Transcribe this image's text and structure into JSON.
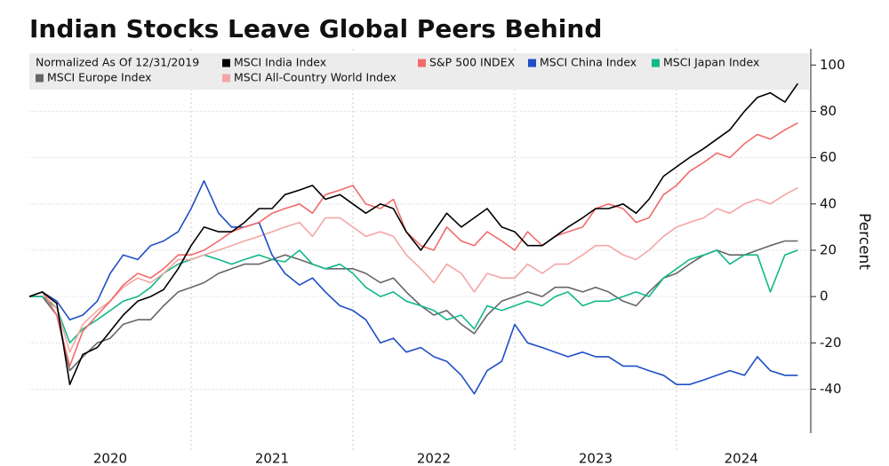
{
  "chart_data": {
    "type": "line",
    "title": "Indian Stocks Leave Global Peers Behind",
    "legend_title": "Normalized As Of 12/31/2019",
    "y_axis_label": "Percent",
    "x": [
      2020.0,
      2020.08,
      2020.17,
      2020.25,
      2020.33,
      2020.42,
      2020.5,
      2020.58,
      2020.67,
      2020.75,
      2020.83,
      2020.92,
      2021.0,
      2021.08,
      2021.17,
      2021.25,
      2021.33,
      2021.42,
      2021.5,
      2021.58,
      2021.67,
      2021.75,
      2021.83,
      2021.92,
      2022.0,
      2022.08,
      2022.17,
      2022.25,
      2022.33,
      2022.42,
      2022.5,
      2022.58,
      2022.67,
      2022.75,
      2022.83,
      2022.92,
      2023.0,
      2023.08,
      2023.17,
      2023.25,
      2023.33,
      2023.42,
      2023.5,
      2023.58,
      2023.67,
      2023.75,
      2023.83,
      2023.92,
      2024.0,
      2024.08,
      2024.17,
      2024.25,
      2024.33,
      2024.42,
      2024.5,
      2024.58,
      2024.67,
      2024.75
    ],
    "series": [
      {
        "name": "MSCI Europe Index",
        "color": "#666666",
        "values": [
          0,
          0,
          -8,
          -32,
          -26,
          -20,
          -18,
          -12,
          -10,
          -10,
          -4,
          2,
          4,
          6,
          10,
          12,
          14,
          14,
          16,
          18,
          16,
          14,
          12,
          12,
          12,
          10,
          6,
          8,
          2,
          -4,
          -8,
          -6,
          -12,
          -16,
          -8,
          -2,
          0,
          2,
          0,
          4,
          4,
          2,
          4,
          2,
          -2,
          -4,
          2,
          8,
          10,
          14,
          18,
          20,
          18,
          18,
          20,
          22,
          24,
          24
        ]
      },
      {
        "name": "MSCI Japan Index",
        "color": "#13b88a",
        "values": [
          0,
          0,
          -5,
          -20,
          -14,
          -10,
          -6,
          -2,
          0,
          4,
          10,
          14,
          16,
          18,
          16,
          14,
          16,
          18,
          16,
          15,
          20,
          14,
          12,
          14,
          10,
          4,
          0,
          2,
          -2,
          -4,
          -6,
          -10,
          -8,
          -14,
          -4,
          -6,
          -4,
          -2,
          -4,
          0,
          2,
          -4,
          -2,
          -2,
          0,
          2,
          0,
          8,
          12,
          16,
          18,
          20,
          14,
          18,
          18,
          2,
          18,
          20
        ]
      },
      {
        "name": "MSCI All-Country World Index",
        "color": "#f4a6a6",
        "values": [
          0,
          2,
          -5,
          -24,
          -12,
          -6,
          -2,
          4,
          8,
          6,
          10,
          16,
          16,
          18,
          20,
          22,
          24,
          26,
          28,
          30,
          32,
          26,
          34,
          34,
          30,
          26,
          28,
          26,
          18,
          12,
          6,
          14,
          10,
          2,
          10,
          8,
          8,
          14,
          10,
          14,
          14,
          18,
          22,
          22,
          18,
          16,
          20,
          26,
          30,
          32,
          34,
          38,
          36,
          40,
          42,
          40,
          44,
          47
        ]
      },
      {
        "name": "MSCI China Index",
        "color": "#1f4ec6",
        "values": [
          0,
          2,
          -2,
          -10,
          -8,
          -2,
          10,
          18,
          16,
          22,
          24,
          28,
          38,
          50,
          36,
          30,
          30,
          32,
          18,
          10,
          5,
          8,
          2,
          -4,
          -6,
          -10,
          -20,
          -18,
          -24,
          -22,
          -26,
          -28,
          -34,
          -42,
          -32,
          -28,
          -12,
          -20,
          -22,
          -24,
          -26,
          -24,
          -26,
          -26,
          -30,
          -30,
          -32,
          -34,
          -38,
          -38,
          -36,
          -34,
          -32,
          -34,
          -26,
          -32,
          -34,
          -34
        ]
      },
      {
        "name": "S&P 500 INDEX",
        "color": "#f26b6b",
        "values": [
          0,
          2,
          -8,
          -30,
          -15,
          -8,
          -2,
          5,
          10,
          8,
          12,
          18,
          18,
          20,
          24,
          28,
          30,
          32,
          36,
          38,
          40,
          36,
          44,
          46,
          48,
          40,
          38,
          42,
          28,
          22,
          20,
          30,
          24,
          22,
          28,
          24,
          20,
          28,
          22,
          26,
          28,
          30,
          38,
          40,
          38,
          32,
          34,
          44,
          48,
          54,
          58,
          62,
          60,
          66,
          70,
          68,
          72,
          75
        ]
      },
      {
        "name": "MSCI India Index",
        "color": "#000000",
        "values": [
          0,
          2,
          -3,
          -38,
          -25,
          -22,
          -15,
          -8,
          -2,
          0,
          3,
          12,
          22,
          30,
          28,
          28,
          32,
          38,
          38,
          44,
          46,
          48,
          42,
          44,
          40,
          36,
          40,
          38,
          28,
          20,
          28,
          36,
          30,
          34,
          38,
          30,
          28,
          22,
          22,
          26,
          30,
          34,
          38,
          38,
          40,
          36,
          42,
          52,
          56,
          60,
          64,
          68,
          72,
          80,
          86,
          88,
          84,
          92
        ]
      }
    ],
    "xlim": [
      2020.0,
      2024.83
    ],
    "xticks": [
      {
        "value": 2020.5,
        "label": "2020"
      },
      {
        "value": 2021.5,
        "label": "2021"
      },
      {
        "value": 2022.5,
        "label": "2022"
      },
      {
        "value": 2023.5,
        "label": "2023"
      },
      {
        "value": 2024.4,
        "label": "2024"
      }
    ],
    "xgrid": [
      2021,
      2022,
      2023,
      2024
    ],
    "ylim": [
      -59,
      107
    ],
    "yticks": [
      -40,
      -20,
      0,
      20,
      40,
      60,
      80,
      100
    ],
    "grid": true
  }
}
